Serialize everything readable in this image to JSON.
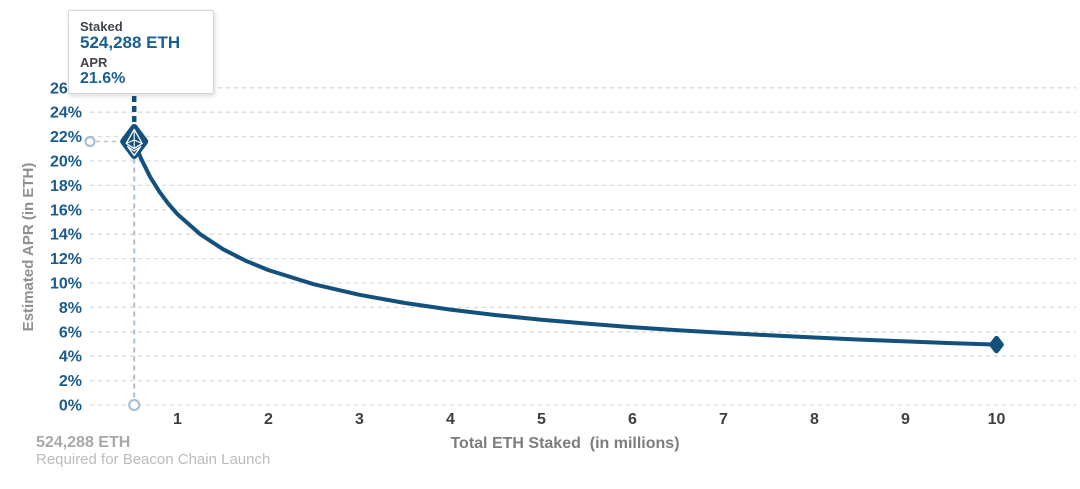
{
  "tooltip": {
    "staked_label": "Staked",
    "staked_value": "524,288 ETH",
    "apr_label": "APR",
    "apr_value": "21.6%"
  },
  "axes": {
    "y_title": "Estimated APR (in ETH)",
    "x_title": "Total ETH Staked  (in millions)",
    "y_ticks": [
      "0%",
      "2%",
      "4%",
      "6%",
      "8%",
      "10%",
      "12%",
      "14%",
      "16%",
      "18%",
      "20%",
      "22%",
      "24%",
      "26%"
    ],
    "x_ticks": [
      "1",
      "2",
      "3",
      "4",
      "5",
      "6",
      "7",
      "8",
      "9",
      "10"
    ]
  },
  "footnote": {
    "line1": "524,288 ETH",
    "line2": "Required for Beacon Chain Launch"
  },
  "colors": {
    "accent": "#12517c",
    "label_blue": "#1b5a8c",
    "tick_dark": "#3f3f3f",
    "grid": "#d9d9d9",
    "dash_light": "#a9bfd3",
    "axis_title_gray": "#8f8f8f",
    "footnote_gray": "#a8a8a8"
  },
  "chart_data": {
    "type": "line",
    "title": "",
    "xlabel": "Total ETH Staked (in millions)",
    "ylabel": "Estimated APR (in ETH)",
    "xlim": [
      0,
      10.9
    ],
    "ylim": [
      0,
      26
    ],
    "grid": "dashed horizontal",
    "highlight_point": {
      "x": 0.524288,
      "y": 21.6,
      "staked": "524,288 ETH",
      "apr": "21.6%"
    },
    "end_point": {
      "x": 10,
      "y": 4.95
    },
    "series": [
      {
        "name": "Estimated APR",
        "points": [
          [
            0.524288,
            21.6
          ],
          [
            0.6,
            20.19
          ],
          [
            0.7,
            18.69
          ],
          [
            0.8,
            17.49
          ],
          [
            0.9,
            16.49
          ],
          [
            1.0,
            15.64
          ],
          [
            1.25,
            13.99
          ],
          [
            1.5,
            12.77
          ],
          [
            1.75,
            11.82
          ],
          [
            2.0,
            11.06
          ],
          [
            2.5,
            9.89
          ],
          [
            3.0,
            9.03
          ],
          [
            3.5,
            8.36
          ],
          [
            4.0,
            7.82
          ],
          [
            4.5,
            7.37
          ],
          [
            5.0,
            6.99
          ],
          [
            5.5,
            6.67
          ],
          [
            6.0,
            6.38
          ],
          [
            6.5,
            6.13
          ],
          [
            7.0,
            5.91
          ],
          [
            7.5,
            5.71
          ],
          [
            8.0,
            5.53
          ],
          [
            8.5,
            5.36
          ],
          [
            9.0,
            5.21
          ],
          [
            9.5,
            5.07
          ],
          [
            10.0,
            4.95
          ]
        ]
      }
    ]
  }
}
